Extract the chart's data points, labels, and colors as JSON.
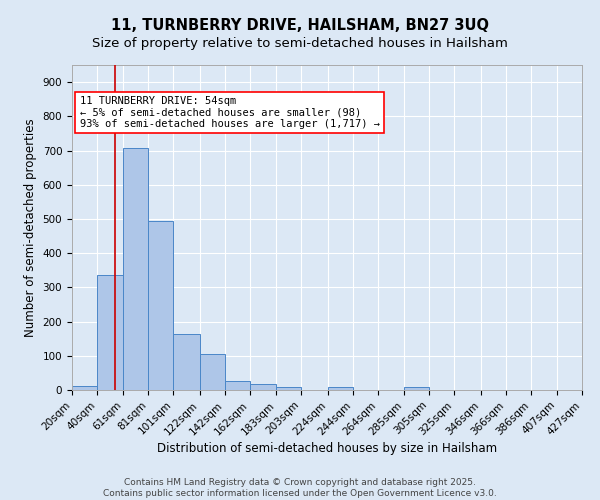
{
  "title_line1": "11, TURNBERRY DRIVE, HAILSHAM, BN27 3UQ",
  "title_line2": "Size of property relative to semi-detached houses in Hailsham",
  "xlabel": "Distribution of semi-detached houses by size in Hailsham",
  "ylabel": "Number of semi-detached properties",
  "bar_edges": [
    20,
    40,
    61,
    81,
    101,
    122,
    142,
    162,
    183,
    203,
    224,
    244,
    264,
    285,
    305,
    325,
    346,
    366,
    386,
    407,
    427
  ],
  "bar_heights": [
    13,
    335,
    706,
    493,
    165,
    105,
    25,
    18,
    8,
    0,
    8,
    0,
    0,
    8,
    0,
    0,
    0,
    0,
    0,
    0
  ],
  "bar_color": "#aec6e8",
  "bar_edgecolor": "#4a86c8",
  "property_size": 54,
  "red_line_x": 54,
  "annotation_text": "11 TURNBERRY DRIVE: 54sqm\n← 5% of semi-detached houses are smaller (98)\n93% of semi-detached houses are larger (1,717) →",
  "annotation_box_color": "white",
  "annotation_box_edgecolor": "red",
  "red_line_color": "#cc0000",
  "ylim": [
    0,
    950
  ],
  "yticks": [
    0,
    100,
    200,
    300,
    400,
    500,
    600,
    700,
    800,
    900
  ],
  "tick_labels": [
    "20sqm",
    "40sqm",
    "61sqm",
    "81sqm",
    "101sqm",
    "122sqm",
    "142sqm",
    "162sqm",
    "183sqm",
    "203sqm",
    "224sqm",
    "244sqm",
    "264sqm",
    "285sqm",
    "305sqm",
    "325sqm",
    "346sqm",
    "366sqm",
    "386sqm",
    "407sqm",
    "427sqm"
  ],
  "footer_text": "Contains HM Land Registry data © Crown copyright and database right 2025.\nContains public sector information licensed under the Open Government Licence v3.0.",
  "bg_color": "#dce8f5",
  "grid_color": "white",
  "title_fontsize": 10.5,
  "subtitle_fontsize": 9.5,
  "axis_label_fontsize": 8.5,
  "tick_fontsize": 7.5,
  "annotation_fontsize": 7.5,
  "footer_fontsize": 6.5
}
